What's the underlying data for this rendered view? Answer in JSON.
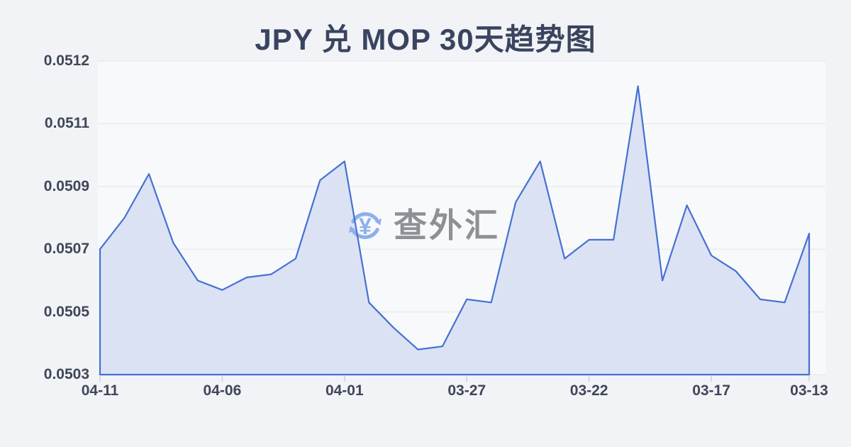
{
  "title": "JPY 兑 MOP 30天趋势图",
  "watermark": {
    "text": "查外汇",
    "symbol": "¥",
    "icon": "currency-exchange-icon"
  },
  "colors": {
    "background": "#f2f3f6",
    "plot_background": "#f8f9fb",
    "line": "#4671d2",
    "fill": "#dbe2f4",
    "grid": "#e8eaef",
    "tick": "#ccd1d8",
    "axis_label": "#3e4659",
    "title": "#39455f",
    "watermark_text": "#8d9196",
    "watermark_icon": "#8cb1ea"
  },
  "chart_data": {
    "type": "area",
    "title": "JPY 兑 MOP 30天趋势图",
    "x": [
      "04-11",
      "04-10",
      "04-09",
      "04-08",
      "04-07",
      "04-06",
      "04-05",
      "04-04",
      "04-03",
      "04-02",
      "04-01",
      "03-31",
      "03-30",
      "03-29",
      "03-28",
      "03-27",
      "03-26",
      "03-25",
      "03-24",
      "03-23",
      "03-22",
      "03-21",
      "03-20",
      "03-19",
      "03-18",
      "03-17",
      "03-16",
      "03-15",
      "03-14",
      "03-13"
    ],
    "values": [
      0.0507,
      0.0508,
      0.05094,
      0.05072,
      0.0506,
      0.05057,
      0.05061,
      0.05062,
      0.05067,
      0.05092,
      0.05098,
      0.05053,
      0.05045,
      0.05038,
      0.05039,
      0.05054,
      0.05053,
      0.05085,
      0.05098,
      0.05067,
      0.05073,
      0.05073,
      0.05122,
      0.0506,
      0.05084,
      0.05068,
      0.05063,
      0.05054,
      0.05053,
      0.05075
    ],
    "x_tick_labels": [
      "04-11",
      "04-06",
      "04-01",
      "03-27",
      "03-22",
      "03-17",
      "03-13"
    ],
    "x_tick_indices": [
      0,
      5,
      10,
      15,
      20,
      25,
      29
    ],
    "y_tick_labels_bottom_to_top": [
      "0.0503",
      "0.0505",
      "0.0507",
      "0.0509",
      "0.0511",
      "0.0512"
    ],
    "ylim": [
      0.0503,
      0.0512
    ],
    "xlabel": "",
    "ylabel": "",
    "grid": "horizontal-only",
    "legend": "none",
    "series_direction": "newest-date-on-left"
  }
}
